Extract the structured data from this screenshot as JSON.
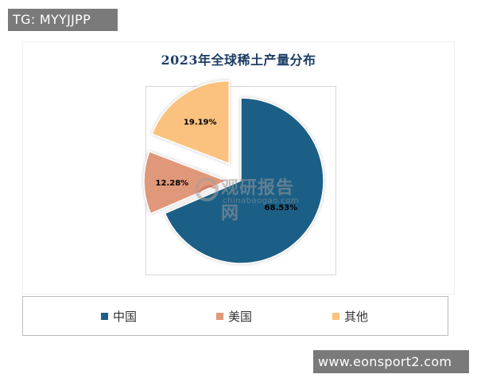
{
  "overlay": {
    "top_tag": "TG: MYYJJPP",
    "bottom_tag": "www.eonsport2.com"
  },
  "watermark": {
    "name": "观研报告网",
    "url": "chinabaogao.com"
  },
  "chart_data": {
    "type": "pie",
    "title": "2023年全球稀土产量分布",
    "unit": "%",
    "exploded": true,
    "start_angle_deg": 0,
    "direction": "clockwise",
    "legend_position": "bottom",
    "slices": [
      {
        "name": "中国",
        "value": 68.53,
        "label": "68.53%",
        "color": "#1f5f86"
      },
      {
        "name": "美国",
        "value": 12.28,
        "label": "12.28%",
        "color": "#e0987a"
      },
      {
        "name": "其他",
        "value": 19.19,
        "label": "19.19%",
        "color": "#fac27e"
      }
    ]
  }
}
